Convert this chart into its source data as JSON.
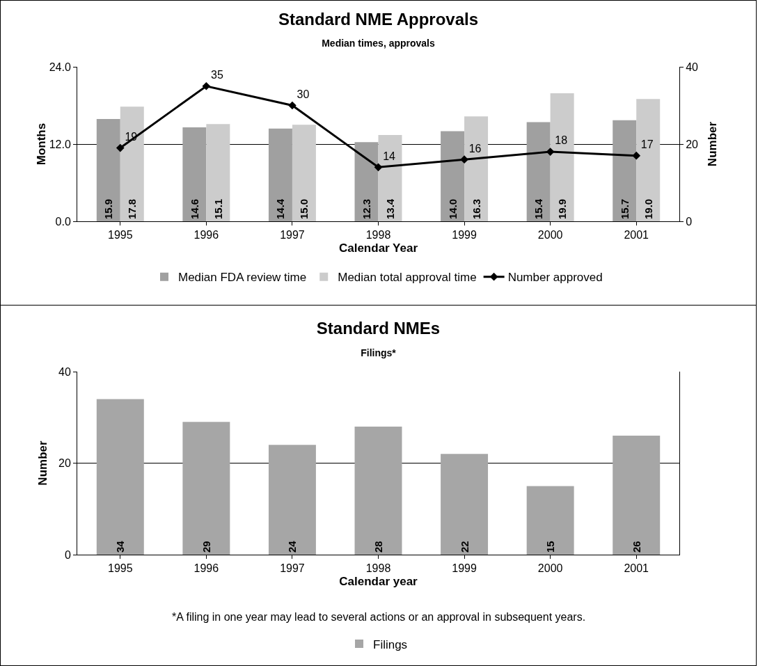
{
  "chart_data": [
    {
      "type": "bar",
      "title": "Standard NME Approvals",
      "subtitle": "Median times, approvals",
      "xlabel": "Calendar Year",
      "ylabel": "Months",
      "y2label": "Number",
      "categories": [
        "1995",
        "1996",
        "1997",
        "1998",
        "1999",
        "2000",
        "2001"
      ],
      "series": [
        {
          "name": "Median FDA review time",
          "color": "#a0a0a0",
          "values": [
            15.9,
            14.6,
            14.4,
            12.3,
            14.0,
            15.4,
            15.7
          ],
          "value_labels": [
            "15.9",
            "14.6",
            "14.4",
            "12.3",
            "14.0",
            "15.4",
            "15.7"
          ]
        },
        {
          "name": "Median total approval time",
          "color": "#cccccc",
          "values": [
            17.8,
            15.1,
            15.0,
            13.4,
            16.3,
            19.9,
            19.0
          ],
          "value_labels": [
            "17.8",
            "15.1",
            "15.0",
            "13.4",
            "16.3",
            "19.9",
            "19.0"
          ]
        },
        {
          "name": "Number approved",
          "type": "line",
          "axis": "y2",
          "color": "#000000",
          "values": [
            19,
            35,
            30,
            14,
            16,
            18,
            17
          ],
          "value_labels": [
            "19",
            "35",
            "30",
            "14",
            "16",
            "18",
            "17"
          ]
        }
      ],
      "ylim": [
        0,
        24
      ],
      "yticks": [
        {
          "value": 0,
          "label": "0.0"
        },
        {
          "value": 12,
          "label": "12.0"
        },
        {
          "value": 24,
          "label": "24.0"
        }
      ],
      "y2lim": [
        0,
        40
      ],
      "y2ticks": [
        0,
        20,
        40
      ],
      "grid": "y",
      "legend": "bottom",
      "marker": "diamond",
      "line_style": "solid"
    },
    {
      "type": "bar",
      "title": "Standard NMEs",
      "subtitle": "Filings*",
      "xlabel": "Calendar year",
      "ylabel": "Number",
      "categories": [
        "1995",
        "1996",
        "1997",
        "1998",
        "1999",
        "2000",
        "2001"
      ],
      "series": [
        {
          "name": "Filings",
          "color": "#a6a6a6",
          "values": [
            34,
            29,
            24,
            28,
            22,
            15,
            26
          ]
        }
      ],
      "ylim": [
        0,
        40
      ],
      "yticks": [
        0,
        20,
        40
      ],
      "grid": "y",
      "legend": "bottom",
      "data_labels": true,
      "annotations": [
        "*A filing in one year may lead to several actions or an approval in subsequent years."
      ]
    }
  ]
}
